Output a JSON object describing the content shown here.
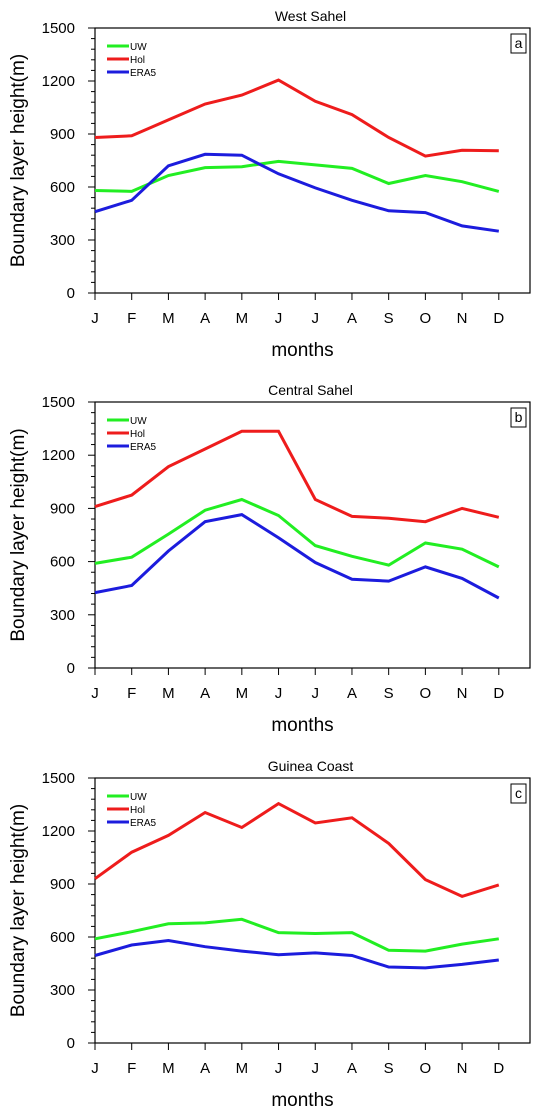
{
  "chart_data": [
    {
      "type": "line",
      "title": "West Sahel",
      "panel_label": "a",
      "xlabel": "months",
      "ylabel": "Boundary layer height(m)",
      "categories": [
        "J",
        "F",
        "M",
        "A",
        "M",
        "J",
        "J",
        "A",
        "S",
        "O",
        "N",
        "D"
      ],
      "yticks": [
        "0",
        "300",
        "600",
        "900",
        "1200",
        "1500"
      ],
      "ylim": [
        0,
        1500
      ],
      "grid": false,
      "legend_position": "top-left",
      "series": [
        {
          "name": "UW",
          "color": "#22ee22",
          "values": [
            580,
            575,
            665,
            710,
            715,
            745,
            725,
            705,
            620,
            665,
            630,
            575
          ]
        },
        {
          "name": "Hol",
          "color": "#ee1c1c",
          "values": [
            880,
            890,
            980,
            1070,
            1120,
            1205,
            1085,
            1010,
            880,
            775,
            808,
            805
          ]
        },
        {
          "name": "ERA5",
          "color": "#1c1cdd",
          "values": [
            460,
            525,
            720,
            785,
            780,
            675,
            595,
            525,
            465,
            455,
            380,
            350
          ]
        }
      ]
    },
    {
      "type": "line",
      "title": "Central Sahel",
      "panel_label": "b",
      "xlabel": "months",
      "ylabel": "Boundary layer height(m)",
      "categories": [
        "J",
        "F",
        "M",
        "A",
        "M",
        "J",
        "J",
        "A",
        "S",
        "O",
        "N",
        "D"
      ],
      "yticks": [
        "0",
        "300",
        "600",
        "900",
        "1200",
        "1500"
      ],
      "ylim": [
        0,
        1500
      ],
      "grid": false,
      "legend_position": "top-left",
      "series": [
        {
          "name": "UW",
          "color": "#22ee22",
          "values": [
            590,
            625,
            755,
            890,
            950,
            860,
            690,
            630,
            580,
            705,
            670,
            570
          ]
        },
        {
          "name": "Hol",
          "color": "#ee1c1c",
          "values": [
            910,
            975,
            1135,
            1235,
            1335,
            1335,
            950,
            855,
            845,
            825,
            900,
            850
          ]
        },
        {
          "name": "ERA5",
          "color": "#1c1cdd",
          "values": [
            425,
            465,
            660,
            825,
            865,
            735,
            595,
            500,
            490,
            570,
            505,
            395
          ]
        }
      ]
    },
    {
      "type": "line",
      "title": "Guinea Coast",
      "panel_label": "c",
      "xlabel": "months",
      "ylabel": "Boundary layer height(m)",
      "categories": [
        "J",
        "F",
        "M",
        "A",
        "M",
        "J",
        "J",
        "A",
        "S",
        "O",
        "N",
        "D"
      ],
      "yticks": [
        "0",
        "300",
        "600",
        "900",
        "1200",
        "1500"
      ],
      "ylim": [
        0,
        1500
      ],
      "grid": false,
      "legend_position": "top-left",
      "series": [
        {
          "name": "UW",
          "color": "#22ee22",
          "values": [
            590,
            630,
            675,
            680,
            700,
            625,
            620,
            625,
            525,
            520,
            560,
            590
          ]
        },
        {
          "name": "Hol",
          "color": "#ee1c1c",
          "values": [
            930,
            1080,
            1175,
            1305,
            1220,
            1355,
            1245,
            1275,
            1130,
            925,
            830,
            895
          ]
        },
        {
          "name": "ERA5",
          "color": "#1c1cdd",
          "values": [
            495,
            555,
            580,
            545,
            520,
            500,
            510,
            495,
            430,
            425,
            445,
            470
          ]
        }
      ]
    }
  ]
}
